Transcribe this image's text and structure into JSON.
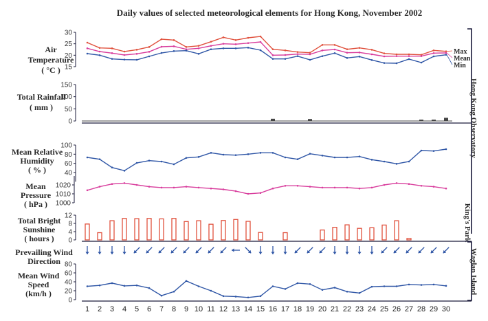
{
  "chart_data": {
    "type": "line",
    "title": "Daily values of selected meteorological elements for Hong Kong, November 2002",
    "days": [
      1,
      2,
      3,
      4,
      5,
      6,
      7,
      8,
      9,
      10,
      11,
      12,
      13,
      14,
      15,
      16,
      17,
      18,
      19,
      20,
      21,
      22,
      23,
      24,
      25,
      26,
      27,
      28,
      29,
      30
    ],
    "colors": {
      "max": "#e0503c",
      "mean": "#d83c9c",
      "min": "#2f56a6",
      "humidity": "#2f56a6",
      "pressure": "#d83c9c",
      "sunshine": "#e0503c",
      "rainfall": "#444444",
      "wind": "#2f56a6",
      "axis": "#1a1a3a"
    },
    "stations": {
      "hko": "Hong Kong Observatory",
      "kings_park": "King's Park",
      "waglan": "Waglan Island"
    },
    "air_temperature": {
      "label_line1": "Air",
      "label_line2": "Temperature",
      "label_line3": "( °C )",
      "ylim": [
        15,
        30
      ],
      "ticks": [
        "15",
        "20",
        "25",
        "30"
      ],
      "legend": {
        "max": "Max",
        "mean": "Mean",
        "min": "Min"
      },
      "max": [
        25.5,
        23.2,
        23.0,
        21.6,
        22.4,
        23.6,
        27.0,
        26.6,
        23.6,
        24.1,
        25.9,
        27.8,
        26.6,
        27.6,
        28.2,
        22.6,
        22.1,
        21.4,
        21.1,
        24.5,
        24.5,
        22.6,
        23.2,
        22.4,
        20.8,
        20.4,
        20.4,
        20.2,
        22.1,
        21.7
      ],
      "mean": [
        23.0,
        21.6,
        20.9,
        20.1,
        20.6,
        21.5,
        23.7,
        23.9,
        22.6,
        23.0,
        24.1,
        25.0,
        24.8,
        25.3,
        25.8,
        20.0,
        20.1,
        20.5,
        20.4,
        22.1,
        22.5,
        21.1,
        21.2,
        20.4,
        19.5,
        19.6,
        19.6,
        19.6,
        20.9,
        21.0
      ],
      "min": [
        20.7,
        20.0,
        18.4,
        18.1,
        18.0,
        19.5,
        21.0,
        21.8,
        22.0,
        20.6,
        22.6,
        23.0,
        23.0,
        23.3,
        22.2,
        18.4,
        18.4,
        19.6,
        18.0,
        19.6,
        20.9,
        18.8,
        19.4,
        17.9,
        16.6,
        16.5,
        18.3,
        16.8,
        19.5,
        20.2
      ]
    },
    "rainfall": {
      "label_line1": "Total Rainfall",
      "label_line2": "( mm )",
      "ylim": [
        0,
        150
      ],
      "ticks": [
        "0",
        "50",
        "100",
        "150"
      ],
      "values": [
        0,
        0,
        0,
        0,
        0,
        0,
        0,
        0,
        0,
        0,
        0,
        0,
        0,
        0,
        0,
        9,
        0,
        0,
        8,
        0,
        0,
        0,
        0,
        0,
        0,
        0,
        0,
        3,
        4,
        13
      ]
    },
    "humidity": {
      "label_line1": "Mean Relative",
      "label_line2": "Humidity",
      "label_line3": "( % )",
      "ylim": [
        20,
        100
      ],
      "ticks": [
        "40",
        "60",
        "80",
        "100"
      ],
      "values": [
        73,
        69,
        51,
        44,
        61,
        66,
        64,
        58,
        72,
        74,
        83,
        79,
        78,
        80,
        83,
        83,
        73,
        69,
        81,
        77,
        73,
        73,
        75,
        68,
        64,
        59,
        64,
        88,
        87,
        91
      ]
    },
    "pressure": {
      "label_line1": "Mean",
      "label_line2": "Pressure",
      "label_line3": "( hPa )",
      "ylim": [
        1000,
        1030
      ],
      "ticks": [
        "1000",
        "1010",
        "1020"
      ],
      "values": [
        1014,
        1018,
        1021,
        1022,
        1020,
        1018,
        1017,
        1017,
        1018,
        1017,
        1016,
        1015,
        1013,
        1010,
        1011,
        1016,
        1019,
        1019,
        1018,
        1017,
        1017,
        1017,
        1016,
        1017,
        1020,
        1022,
        1021,
        1019,
        1018,
        1016
      ]
    },
    "sunshine": {
      "label_line1": "Total Bright",
      "label_line2": "Sunshine",
      "label_line3": "( hours )",
      "ylim": [
        0,
        12
      ],
      "ticks": [
        "0",
        "4",
        "8",
        "12"
      ],
      "values": [
        7.7,
        3.5,
        9.3,
        10.4,
        10.3,
        10.4,
        10.2,
        10.4,
        8.9,
        9.3,
        7.6,
        9.4,
        9.9,
        9.0,
        3.6,
        0,
        3.5,
        0,
        0,
        4.8,
        6.1,
        7.3,
        5.6,
        5.9,
        7.2,
        9.3,
        0.7,
        0,
        0,
        0
      ]
    },
    "wind_direction": {
      "label_line1": "Prevailing Wind",
      "label_line2": "Direction",
      "from_deg": [
        0,
        0,
        0,
        0,
        45,
        45,
        45,
        45,
        45,
        45,
        45,
        45,
        90,
        315,
        0,
        0,
        0,
        45,
        45,
        45,
        0,
        0,
        0,
        0,
        45,
        45,
        45,
        45,
        45,
        45
      ]
    },
    "wind_speed": {
      "label_line1": "Mean Wind",
      "label_line2": "Speed",
      "label_line3": "(km/h )",
      "ylim": [
        0,
        80
      ],
      "ticks": [
        "0",
        "20",
        "40",
        "60",
        "80"
      ],
      "values": [
        30,
        32,
        37,
        31,
        32,
        26,
        9,
        18,
        42,
        30,
        20,
        8,
        7,
        5,
        8,
        30,
        24,
        37,
        35,
        22,
        27,
        18,
        15,
        29,
        30,
        30,
        34,
        33,
        34,
        31
      ]
    }
  }
}
